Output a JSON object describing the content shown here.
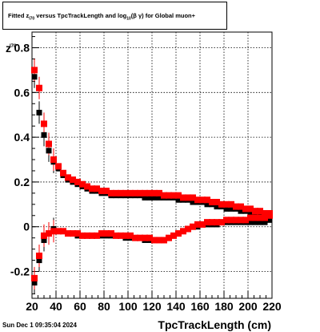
{
  "chart_data": {
    "type": "scatter",
    "title_parts": {
      "pre": "Fitted  z",
      "sub1": "I70",
      "mid": "  versus TpcTrackLength and log",
      "sub2": "10",
      "post": "(β  γ) for Global muon+"
    },
    "xlabel": "TpcTrackLength (cm)",
    "ylabel": "z",
    "ylabel_sub": "I70",
    "xlim": [
      20,
      220
    ],
    "ylim": [
      -0.32,
      0.87
    ],
    "x_ticks": [
      20,
      40,
      60,
      80,
      100,
      120,
      140,
      160,
      180,
      200,
      220
    ],
    "y_ticks": [
      -0.2,
      0,
      0.2,
      0.4,
      0.6,
      0.8
    ],
    "grid": true,
    "series": [
      {
        "color": "#000000",
        "points": [
          [
            22,
            0.67
          ],
          [
            22,
            -0.25
          ],
          [
            26,
            0.51
          ],
          [
            26,
            -0.15
          ],
          [
            30,
            0.41
          ],
          [
            30,
            -0.06
          ],
          [
            34,
            0.34
          ],
          [
            34,
            -0.03
          ],
          [
            38,
            0.29
          ],
          [
            38,
            -0.01
          ],
          [
            42,
            0.26
          ],
          [
            46,
            0.23
          ],
          [
            50,
            0.21
          ],
          [
            54,
            0.2
          ],
          [
            58,
            0.19
          ],
          [
            62,
            0.18
          ],
          [
            66,
            0.17
          ],
          [
            70,
            0.16
          ],
          [
            74,
            0.16
          ],
          [
            78,
            0.15
          ],
          [
            82,
            0.15
          ],
          [
            86,
            0.14
          ],
          [
            90,
            0.14
          ],
          [
            94,
            0.14
          ],
          [
            98,
            0.14
          ],
          [
            102,
            0.14
          ],
          [
            106,
            0.14
          ],
          [
            110,
            0.14
          ],
          [
            114,
            0.13
          ],
          [
            118,
            0.13
          ],
          [
            122,
            0.13
          ],
          [
            126,
            0.13
          ],
          [
            130,
            0.13
          ],
          [
            134,
            0.13
          ],
          [
            138,
            0.13
          ],
          [
            142,
            0.12
          ],
          [
            146,
            0.12
          ],
          [
            150,
            0.12
          ],
          [
            154,
            0.11
          ],
          [
            158,
            0.11
          ],
          [
            162,
            0.11
          ],
          [
            166,
            0.1
          ],
          [
            170,
            0.1
          ],
          [
            174,
            0.09
          ],
          [
            178,
            0.09
          ],
          [
            182,
            0.08
          ],
          [
            186,
            0.08
          ],
          [
            190,
            0.08
          ],
          [
            194,
            0.07
          ],
          [
            198,
            0.07
          ],
          [
            202,
            0.06
          ],
          [
            206,
            0.06
          ],
          [
            210,
            0.06
          ],
          [
            214,
            0.05
          ],
          [
            218,
            0.05
          ],
          [
            42,
            -0.02
          ],
          [
            46,
            -0.02
          ],
          [
            50,
            -0.03
          ],
          [
            54,
            -0.03
          ],
          [
            58,
            -0.04
          ],
          [
            62,
            -0.04
          ],
          [
            66,
            -0.04
          ],
          [
            70,
            -0.04
          ],
          [
            74,
            -0.04
          ],
          [
            78,
            -0.04
          ],
          [
            82,
            -0.04
          ],
          [
            86,
            -0.04
          ],
          [
            90,
            -0.04
          ],
          [
            94,
            -0.04
          ],
          [
            98,
            -0.05
          ],
          [
            102,
            -0.05
          ],
          [
            106,
            -0.05
          ],
          [
            110,
            -0.05
          ],
          [
            114,
            -0.06
          ],
          [
            118,
            -0.06
          ],
          [
            122,
            -0.06
          ],
          [
            126,
            -0.06
          ],
          [
            130,
            -0.06
          ],
          [
            134,
            -0.05
          ],
          [
            138,
            -0.04
          ],
          [
            142,
            -0.03
          ],
          [
            146,
            -0.02
          ],
          [
            150,
            -0.01
          ],
          [
            154,
            0.0
          ],
          [
            158,
            0.0
          ],
          [
            162,
            0.01
          ],
          [
            166,
            0.01
          ],
          [
            170,
            0.01
          ],
          [
            174,
            0.01
          ],
          [
            178,
            0.02
          ],
          [
            182,
            0.02
          ],
          [
            186,
            0.02
          ],
          [
            190,
            0.02
          ],
          [
            194,
            0.02
          ],
          [
            198,
            0.02
          ],
          [
            202,
            0.02
          ],
          [
            206,
            0.02
          ],
          [
            210,
            0.02
          ],
          [
            214,
            0.02
          ],
          [
            218,
            0.03
          ]
        ]
      },
      {
        "color": "#ff0000",
        "points": [
          [
            22,
            0.7
          ],
          [
            22,
            -0.23
          ],
          [
            26,
            0.62
          ],
          [
            26,
            -0.13
          ],
          [
            30,
            0.46
          ],
          [
            30,
            -0.04
          ],
          [
            34,
            0.37
          ],
          [
            34,
            -0.03
          ],
          [
            38,
            0.3
          ],
          [
            38,
            -0.02
          ],
          [
            42,
            0.27
          ],
          [
            46,
            0.24
          ],
          [
            50,
            0.22
          ],
          [
            54,
            0.21
          ],
          [
            58,
            0.2
          ],
          [
            62,
            0.19
          ],
          [
            66,
            0.18
          ],
          [
            70,
            0.17
          ],
          [
            74,
            0.17
          ],
          [
            78,
            0.16
          ],
          [
            82,
            0.16
          ],
          [
            86,
            0.15
          ],
          [
            90,
            0.15
          ],
          [
            94,
            0.15
          ],
          [
            98,
            0.15
          ],
          [
            102,
            0.15
          ],
          [
            106,
            0.15
          ],
          [
            110,
            0.15
          ],
          [
            114,
            0.15
          ],
          [
            118,
            0.15
          ],
          [
            122,
            0.15
          ],
          [
            126,
            0.15
          ],
          [
            130,
            0.14
          ],
          [
            134,
            0.14
          ],
          [
            138,
            0.14
          ],
          [
            142,
            0.14
          ],
          [
            146,
            0.13
          ],
          [
            150,
            0.13
          ],
          [
            154,
            0.13
          ],
          [
            158,
            0.12
          ],
          [
            162,
            0.12
          ],
          [
            166,
            0.12
          ],
          [
            170,
            0.11
          ],
          [
            174,
            0.11
          ],
          [
            178,
            0.1
          ],
          [
            182,
            0.1
          ],
          [
            186,
            0.1
          ],
          [
            190,
            0.09
          ],
          [
            194,
            0.09
          ],
          [
            198,
            0.08
          ],
          [
            202,
            0.08
          ],
          [
            206,
            0.07
          ],
          [
            210,
            0.07
          ],
          [
            214,
            0.06
          ],
          [
            218,
            0.06
          ],
          [
            42,
            -0.02
          ],
          [
            46,
            -0.02
          ],
          [
            50,
            -0.03
          ],
          [
            54,
            -0.03
          ],
          [
            58,
            -0.03
          ],
          [
            62,
            -0.04
          ],
          [
            66,
            -0.04
          ],
          [
            70,
            -0.04
          ],
          [
            74,
            -0.04
          ],
          [
            78,
            -0.03
          ],
          [
            82,
            -0.03
          ],
          [
            86,
            -0.03
          ],
          [
            90,
            -0.04
          ],
          [
            94,
            -0.04
          ],
          [
            98,
            -0.04
          ],
          [
            102,
            -0.04
          ],
          [
            106,
            -0.05
          ],
          [
            110,
            -0.05
          ],
          [
            114,
            -0.05
          ],
          [
            118,
            -0.05
          ],
          [
            122,
            -0.06
          ],
          [
            126,
            -0.06
          ],
          [
            130,
            -0.06
          ],
          [
            134,
            -0.05
          ],
          [
            138,
            -0.04
          ],
          [
            142,
            -0.03
          ],
          [
            146,
            -0.02
          ],
          [
            150,
            -0.01
          ],
          [
            154,
            0.0
          ],
          [
            158,
            0.01
          ],
          [
            162,
            0.01
          ],
          [
            166,
            0.02
          ],
          [
            170,
            0.02
          ],
          [
            174,
            0.02
          ],
          [
            178,
            0.02
          ],
          [
            182,
            0.03
          ],
          [
            186,
            0.03
          ],
          [
            190,
            0.03
          ],
          [
            194,
            0.03
          ],
          [
            198,
            0.03
          ],
          [
            202,
            0.04
          ],
          [
            206,
            0.04
          ],
          [
            210,
            0.04
          ],
          [
            214,
            0.04
          ],
          [
            218,
            0.05
          ]
        ]
      }
    ]
  },
  "footer": {
    "timestamp": "Sun Dec  1 09:35:04 2024"
  }
}
